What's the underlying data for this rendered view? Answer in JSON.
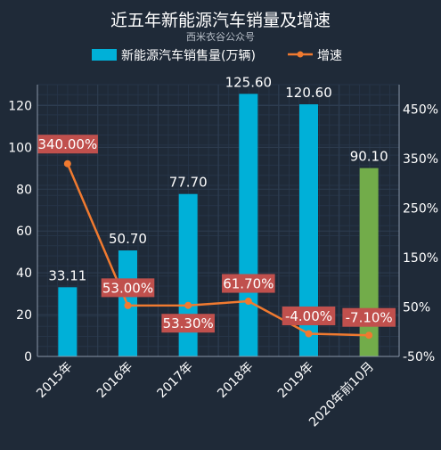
{
  "chart_data": {
    "type": "bar",
    "title": "近五年新能源汽车销量及增速",
    "subtitle": "西米衣谷公众号",
    "categories": [
      "2015年",
      "2016年",
      "2017年",
      "2018年",
      "2019年",
      "2020年前10月"
    ],
    "series": [
      {
        "name": "新能源汽车销售量(万辆)",
        "type": "bar",
        "axis": "left",
        "values": [
          33.11,
          50.7,
          77.7,
          125.6,
          120.6,
          90.1
        ],
        "labels": [
          "33.11",
          "50.70",
          "77.70",
          "125.60",
          "120.60",
          "90.10"
        ],
        "color": "#00b0d8",
        "highlight_color": "#72ac4a",
        "highlight_index": 5
      },
      {
        "name": "增速",
        "type": "line",
        "axis": "right",
        "values": [
          340.0,
          53.0,
          53.3,
          61.7,
          -4.0,
          -7.1
        ],
        "labels": [
          "340.00%",
          "53.00%",
          "53.30%",
          "61.70%",
          "-4.00%",
          "-7.10%"
        ],
        "color": "#f07a30",
        "label_bg": "#c0504d"
      }
    ],
    "y_left": {
      "ylim": [
        0,
        130
      ],
      "ticks": [
        "0",
        "20",
        "40",
        "60",
        "80",
        "100",
        "120"
      ],
      "tick_values": [
        0,
        20,
        40,
        60,
        80,
        100,
        120
      ]
    },
    "y_right": {
      "ylim": [
        -50,
        500
      ],
      "ticks": [
        "-50%",
        "50%",
        "150%",
        "250%",
        "350%",
        "450%"
      ],
      "tick_values": [
        -50,
        50,
        150,
        250,
        350,
        450
      ]
    },
    "legend_position": "top-center",
    "grid": true,
    "colors": {
      "background": "#1f2a38",
      "grid": "#2e3d50",
      "axis": "#8a97a8",
      "text": "#ffffff"
    }
  }
}
